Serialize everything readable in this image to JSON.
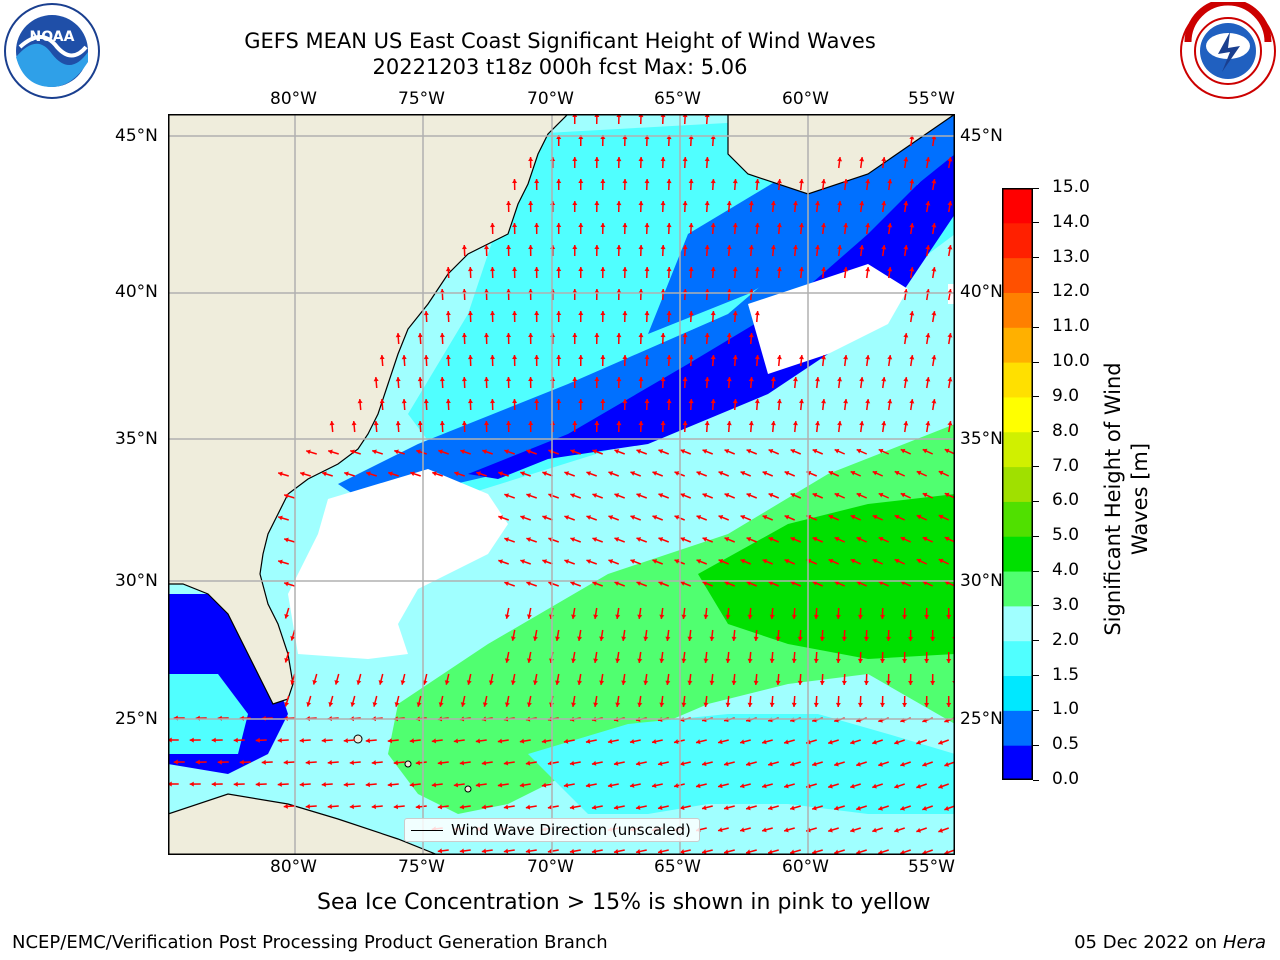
{
  "title": {
    "line1": "GEFS MEAN US East Coast Significant Height of Wind Waves",
    "line2": "20221203 t18z 000h fcst   Max: 5.06"
  },
  "logos": {
    "left": "NOAA",
    "right": "NATIONAL WEATHER SERVICE"
  },
  "map": {
    "lon_ticks": [
      "80°W",
      "75°W",
      "70°W",
      "65°W",
      "60°W",
      "55°W"
    ],
    "lat_ticks_left": [
      "45°N",
      "40°N",
      "35°N",
      "30°N",
      "25°N"
    ],
    "lat_ticks_right": [
      "45°N",
      "40°N",
      "35°N",
      "30°N",
      "25°N"
    ],
    "legend_label": "Wind Wave Direction (unscaled)",
    "land_color": "#efeddc",
    "arrow_color": "#ff0000"
  },
  "colorbar": {
    "label": "Significant Height of Wind Waves [m]",
    "ticks": [
      "0.0",
      "0.5",
      "1.0",
      "1.5",
      "2.0",
      "3.0",
      "4.0",
      "5.0",
      "6.0",
      "7.0",
      "8.0",
      "9.0",
      "10.0",
      "11.0",
      "12.0",
      "13.0",
      "14.0",
      "15.0"
    ],
    "colors": [
      "#0000ff",
      "#0070ff",
      "#00e8ff",
      "#50ffff",
      "#a0ffff",
      "#50ff70",
      "#00e000",
      "#50e000",
      "#a0e000",
      "#d0f000",
      "#ffff00",
      "#ffe000",
      "#ffb000",
      "#ff8000",
      "#ff5000",
      "#ff2000",
      "#ff0000"
    ]
  },
  "note": "Sea Ice Concentration > 15% is shown in pink to yellow",
  "footer": {
    "left": "NCEP/EMC/Verification Post Processing Product Generation Branch",
    "right_date": "05 Dec 2022 on",
    "right_host": "Hera"
  }
}
